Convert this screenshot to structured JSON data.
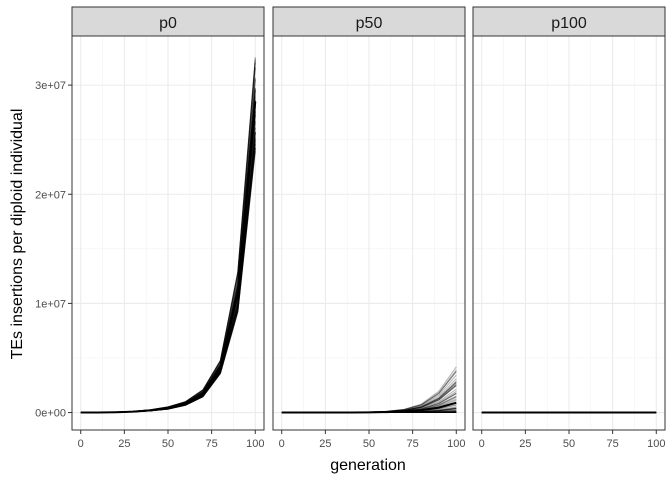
{
  "chart_data": {
    "type": "line",
    "xlabel": "generation",
    "ylabel": "TEs insertions per diploid individual",
    "facet_labels": [
      "p0",
      "p50",
      "p100"
    ],
    "x_ticks": [
      0,
      25,
      50,
      75,
      100
    ],
    "y_ticks": [
      0,
      10000000,
      20000000,
      30000000
    ],
    "y_tick_labels": [
      "0e+00",
      "1e+07",
      "2e+07",
      "3e+07"
    ],
    "xlim": [
      -5,
      105
    ],
    "ylim": [
      -1600000,
      34500000
    ],
    "grid": true,
    "line_color": "#000000",
    "panels": [
      {
        "label": "p0",
        "x": [
          0,
          10,
          20,
          30,
          40,
          50,
          60,
          70,
          80,
          90,
          100
        ],
        "y_min": [
          0,
          5000,
          20000,
          60000,
          150000,
          300000,
          650000,
          1400000,
          3500000,
          9000000,
          23500000
        ],
        "y_mean": [
          0,
          8000,
          30000,
          80000,
          200000,
          400000,
          800000,
          1700000,
          4000000,
          11000000,
          28500000
        ],
        "y_max": [
          0,
          12000,
          45000,
          110000,
          260000,
          520000,
          1000000,
          2100000,
          4800000,
          13000000,
          32700000
        ]
      },
      {
        "label": "p50",
        "x": [
          0,
          10,
          20,
          30,
          40,
          50,
          60,
          70,
          80,
          90,
          100
        ],
        "y_min": [
          0,
          0,
          0,
          0,
          0,
          0,
          0,
          0,
          0,
          0,
          0
        ],
        "y_mean": [
          0,
          0,
          0,
          0,
          5000,
          15000,
          40000,
          100000,
          220000,
          450000,
          900000
        ],
        "y_max": [
          0,
          0,
          1000,
          5000,
          20000,
          50000,
          120000,
          300000,
          800000,
          2000000,
          4300000
        ]
      },
      {
        "label": "p100",
        "x": [
          0,
          10,
          20,
          30,
          40,
          50,
          60,
          70,
          80,
          90,
          100
        ],
        "y_min": [
          0,
          0,
          0,
          0,
          0,
          0,
          0,
          0,
          0,
          0,
          0
        ],
        "y_mean": [
          0,
          0,
          0,
          0,
          0,
          0,
          0,
          0,
          0,
          0,
          0
        ],
        "y_max": [
          0,
          0,
          0,
          0,
          0,
          0,
          0,
          0,
          0,
          0,
          0
        ]
      }
    ]
  }
}
